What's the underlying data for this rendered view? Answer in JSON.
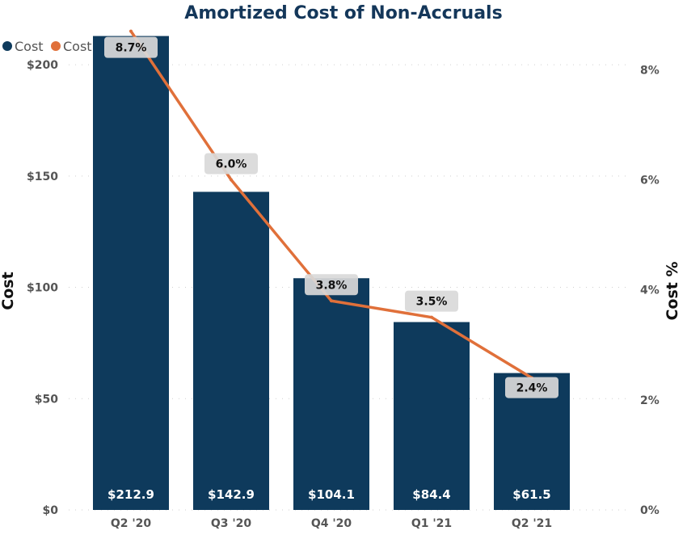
{
  "chart_data": {
    "type": "bar",
    "title": "Amortized Cost of Non-Accruals",
    "categories": [
      "Q2 '20",
      "Q3 '20",
      "Q4 '20",
      "Q1 '21",
      "Q2 '21"
    ],
    "series": [
      {
        "name": "Cost",
        "type": "bar",
        "axis": "left",
        "values": [
          212.9,
          142.9,
          104.1,
          84.4,
          61.5
        ],
        "labels": [
          "$212.9",
          "$142.9",
          "$104.1",
          "$84.4",
          "$61.5"
        ],
        "color": "#0e3a5c"
      },
      {
        "name": "Cost %",
        "type": "line",
        "axis": "right",
        "values": [
          8.7,
          6.0,
          3.8,
          3.5,
          2.4
        ],
        "labels": [
          "8.7%",
          "6.0%",
          "3.8%",
          "3.5%",
          "2.4%"
        ],
        "color": "#e0703a"
      }
    ],
    "ylabel": "Cost",
    "y2label": "Cost %",
    "ylim": [
      0,
      220
    ],
    "y2lim": [
      0,
      8.9
    ],
    "yticks": [
      0,
      50,
      100,
      150,
      200
    ],
    "ytick_labels": [
      "$0",
      "$50",
      "$100",
      "$150",
      "$200"
    ],
    "y2ticks": [
      0,
      2,
      4,
      6,
      8
    ],
    "y2tick_labels": [
      "0%",
      "2%",
      "4%",
      "6%",
      "8%"
    ],
    "grid": true,
    "legend": "top-left",
    "colors": {
      "title": "#14375a",
      "text": "#555555",
      "label_box": "#d9d9d9",
      "grid": "#cfcfcf"
    }
  }
}
